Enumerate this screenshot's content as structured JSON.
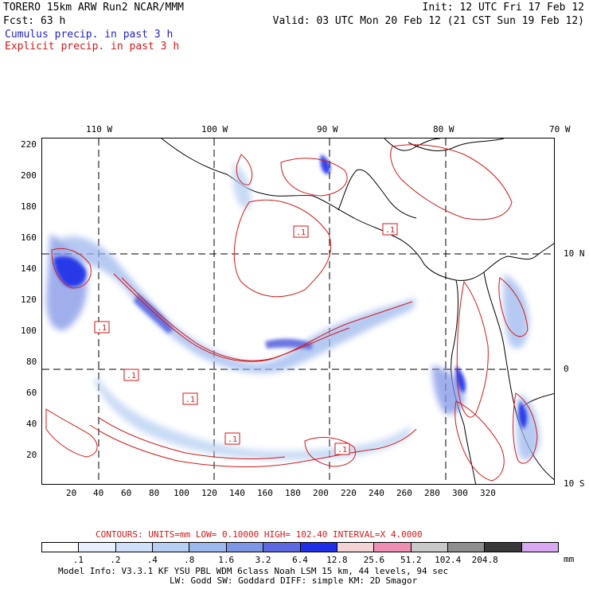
{
  "header": {
    "model_line": "TORERO  15km ARW   Run2   NCAR/MMM",
    "init_line": "Init: 12 UTC Fri 17 Feb 12",
    "fcst_line": "Fcst:   63 h",
    "valid_line": "Valid: 03 UTC Mon 20 Feb 12 (21 CST Sun 19 Feb 12)",
    "legend_cumulus": "Cumulus precip. in past 3 h",
    "legend_explicit": "Explicit precip. in past 3 h",
    "cumulus_color": "#2424c8",
    "explicit_color": "#d41a1a"
  },
  "map": {
    "top_longitudes": [
      "110 W",
      "100 W",
      "90 W",
      "80 W",
      "70 W"
    ],
    "right_latitudes": [
      "10 N",
      "0",
      "10 S"
    ],
    "left_y_ticks": [
      "220",
      "200",
      "180",
      "160",
      "140",
      "120",
      "100",
      "80",
      "60",
      "40",
      "20"
    ],
    "bottom_x_ticks": [
      "20",
      "40",
      "60",
      "80",
      "100",
      "120",
      "140",
      "160",
      "180",
      "200",
      "220",
      "240",
      "260",
      "280",
      "300",
      "320"
    ],
    "contour_labels": [
      ".1",
      ".1",
      ".1",
      ".1",
      ".1",
      ".1",
      ".1"
    ]
  },
  "contours": {
    "line": "CONTOURS:  UNITS=mm  LOW= 0.10000      HIGH=  102.40      INTERVAL=X  4.0000"
  },
  "colorbar": {
    "colors": [
      "#ffffff",
      "#e8f0fc",
      "#cfe0f8",
      "#b6cff2",
      "#9db8ee",
      "#7f95e6",
      "#5c69e0",
      "#1f2ee8",
      "#f2d4d4",
      "#ef8fb4",
      "#c8c8c8",
      "#8e8e8e",
      "#383838",
      "#d8a8f0"
    ],
    "ticks": [
      ".1",
      ".2",
      ".4",
      ".8",
      "1.6",
      "3.2",
      "6.4",
      "12.8",
      "25.6",
      "51.2",
      "102.4",
      "204.8"
    ],
    "unit": "mm"
  },
  "footer": {
    "line1": "Model Info: V3.3.1    KF     YSU PBL   WDM 6class  Noah LSM  15 km,    44 levels,    94 sec",
    "line2": "LW: Godd SW: Goddard DIFF: simple KM: 2D Smagor"
  }
}
